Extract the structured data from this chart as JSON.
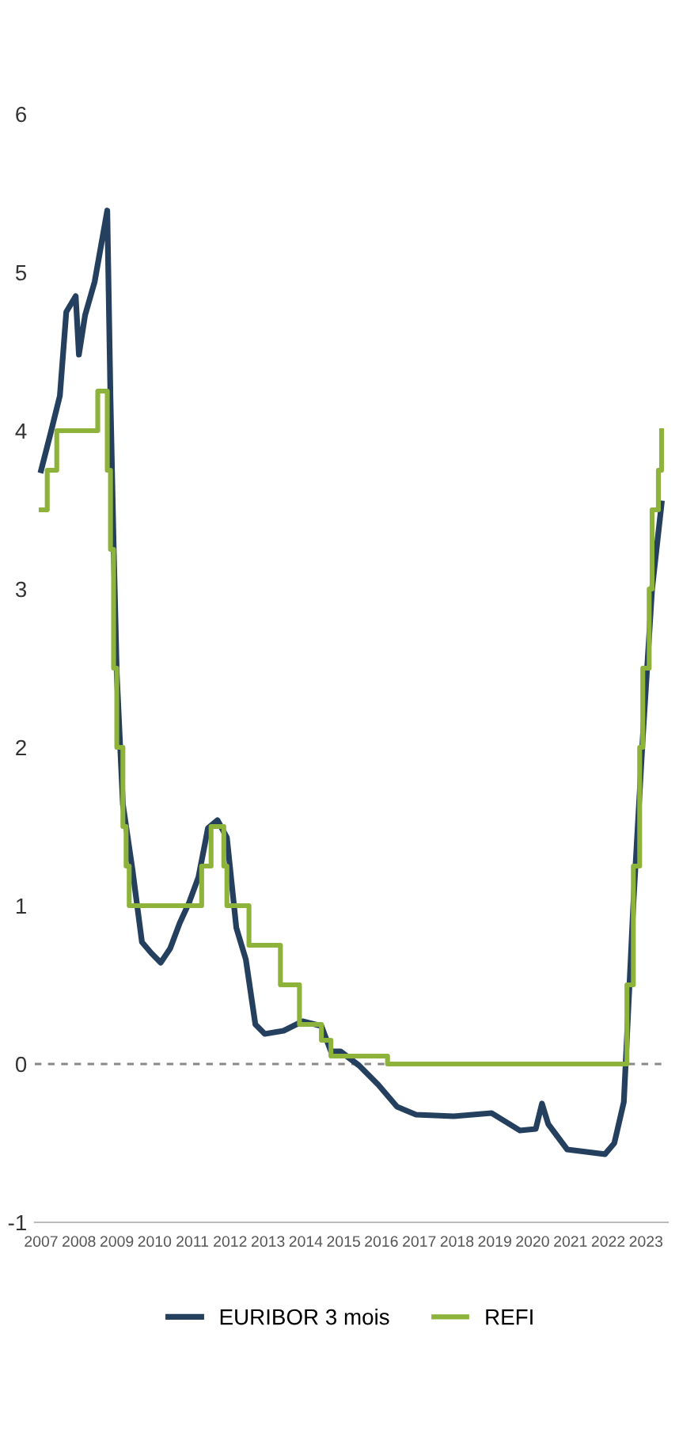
{
  "chart_data": {
    "type": "line",
    "xlim": [
      "2006-11-01",
      "2023-08-01"
    ],
    "xticks": [
      {
        "value": "2007-01-01",
        "label": "2007"
      },
      {
        "value": "2008-01-01",
        "label": "2008"
      },
      {
        "value": "2009-01-01",
        "label": "2009"
      },
      {
        "value": "2010-01-01",
        "label": "2010"
      },
      {
        "value": "2011-01-01",
        "label": "2011"
      },
      {
        "value": "2012-01-01",
        "label": "2012"
      },
      {
        "value": "2013-01-01",
        "label": "2013"
      },
      {
        "value": "2014-01-01",
        "label": "2014"
      },
      {
        "value": "2015-01-01",
        "label": "2015"
      },
      {
        "value": "2016-01-01",
        "label": "2016"
      },
      {
        "value": "2017-01-01",
        "label": "2017"
      },
      {
        "value": "2018-01-01",
        "label": "2018"
      },
      {
        "value": "2019-01-01",
        "label": "2019"
      },
      {
        "value": "2020-01-01",
        "label": "2020"
      },
      {
        "value": "2021-01-01",
        "label": "2021"
      },
      {
        "value": "2022-01-01",
        "label": "2022"
      },
      {
        "value": "2023-01-01",
        "label": "2023"
      }
    ],
    "ylim": [
      -1,
      6
    ],
    "yticks": [
      -1,
      0,
      1,
      2,
      3,
      4,
      5,
      6
    ],
    "grid": false,
    "legend": "bottom",
    "ref_lines": [
      {
        "axis": "y",
        "value": 0,
        "color": "#888888",
        "line_style": "dotted"
      }
    ],
    "series": [
      {
        "name": "EURIBOR 3 mois",
        "color": "#24405e",
        "x": [
          "2007-01",
          "2007-04",
          "2007-07",
          "2007-09",
          "2007-12",
          "2008-01",
          "2008-03",
          "2008-06",
          "2008-10",
          "2008-11",
          "2008-12",
          "2009-01",
          "2009-03",
          "2009-06",
          "2009-09",
          "2009-12",
          "2010-03",
          "2010-06",
          "2010-09",
          "2010-12",
          "2011-03",
          "2011-06",
          "2011-09",
          "2011-12",
          "2012-03",
          "2012-06",
          "2012-09",
          "2012-12",
          "2013-06",
          "2013-12",
          "2014-06",
          "2014-09",
          "2014-12",
          "2015-06",
          "2015-12",
          "2016-06",
          "2016-12",
          "2017-12",
          "2018-12",
          "2019-09",
          "2020-02",
          "2020-04",
          "2020-06",
          "2020-12",
          "2021-12",
          "2022-03",
          "2022-06",
          "2022-09",
          "2022-12",
          "2023-03",
          "2023-06"
        ],
        "values": [
          3.75,
          3.98,
          4.22,
          4.75,
          4.85,
          4.48,
          4.73,
          4.94,
          5.39,
          4.2,
          3.29,
          2.46,
          1.64,
          1.23,
          0.77,
          0.7,
          0.64,
          0.73,
          0.89,
          1.02,
          1.18,
          1.49,
          1.54,
          1.43,
          0.86,
          0.66,
          0.25,
          0.19,
          0.21,
          0.27,
          0.24,
          0.08,
          0.08,
          -0.01,
          -0.13,
          -0.27,
          -0.32,
          -0.33,
          -0.31,
          -0.42,
          -0.41,
          -0.25,
          -0.38,
          -0.54,
          -0.57,
          -0.5,
          -0.24,
          1.01,
          2.06,
          3.0,
          3.54
        ]
      },
      {
        "name": "REFI",
        "color": "#8db33a",
        "type": "step",
        "x": [
          "2007-01",
          "2007-03",
          "2007-06",
          "2008-07",
          "2008-10",
          "2008-11",
          "2008-12",
          "2009-01",
          "2009-03",
          "2009-04",
          "2009-05",
          "2011-04",
          "2011-07",
          "2011-11",
          "2011-12",
          "2012-07",
          "2013-05",
          "2013-11",
          "2014-06",
          "2014-09",
          "2016-03",
          "2022-07",
          "2022-09",
          "2022-11",
          "2022-12",
          "2023-02",
          "2023-03",
          "2023-05",
          "2023-06"
        ],
        "values": [
          3.5,
          3.75,
          4.0,
          4.25,
          3.75,
          3.25,
          2.5,
          2.0,
          1.5,
          1.25,
          1.0,
          1.25,
          1.5,
          1.25,
          1.0,
          0.75,
          0.5,
          0.25,
          0.15,
          0.05,
          0.0,
          0.5,
          1.25,
          2.0,
          2.5,
          3.0,
          3.5,
          3.75,
          4.0
        ]
      }
    ]
  }
}
